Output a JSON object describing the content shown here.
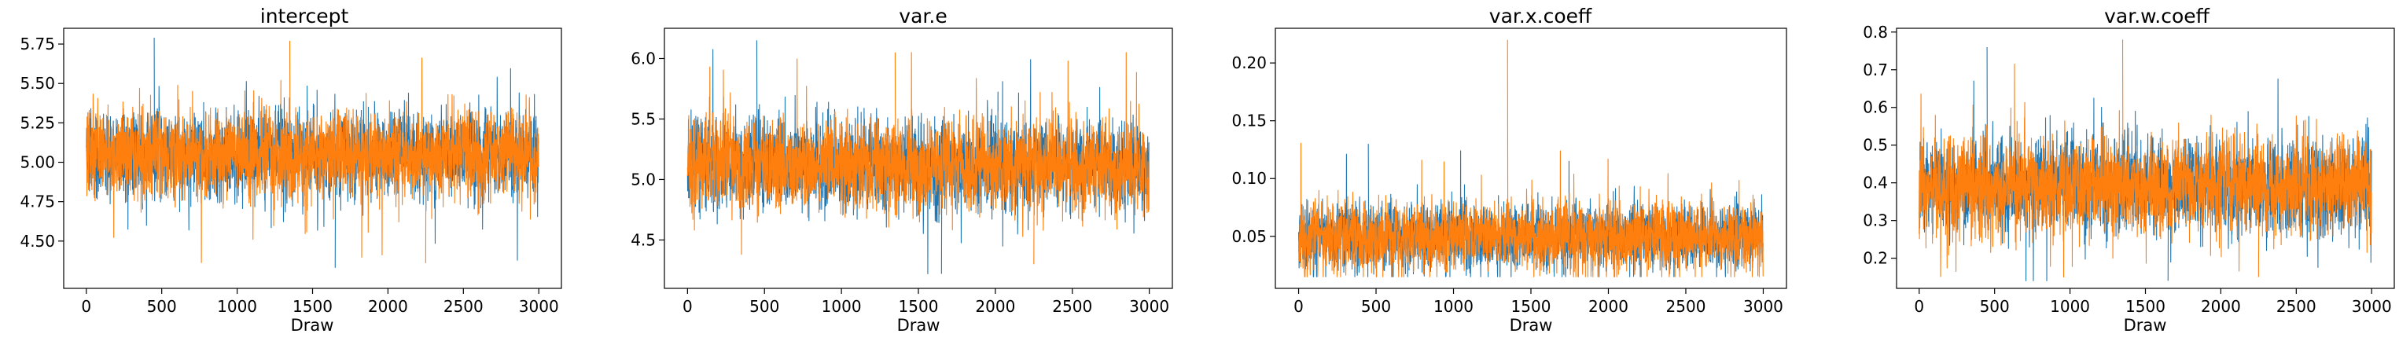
{
  "chart_data": [
    {
      "type": "line",
      "title": "intercept",
      "xlabel": "Draw",
      "ylabel": "",
      "xlim": [
        -150,
        3150
      ],
      "ylim": [
        4.2,
        5.85
      ],
      "xticks": [
        0,
        500,
        1000,
        1500,
        2000,
        2500,
        3000
      ],
      "xtick_labels": [
        "0",
        "500",
        "1000",
        "1500",
        "2000",
        "2500",
        "3000"
      ],
      "yticks": [
        4.5,
        4.75,
        5.0,
        5.25,
        5.5,
        5.75
      ],
      "ytick_labels": [
        "4.50",
        "4.75",
        "5.00",
        "5.25",
        "5.50",
        "5.75"
      ],
      "draws": 3000,
      "series": [
        {
          "color": "#1f77b4",
          "center": 5.05,
          "spread": 0.16,
          "min": 4.33,
          "max": 5.79
        },
        {
          "color": "#ff7f0e",
          "center": 5.05,
          "spread": 0.16,
          "min": 4.36,
          "max": 5.77
        }
      ]
    },
    {
      "type": "line",
      "title": "var.e",
      "xlabel": "Draw",
      "ylabel": "",
      "xlim": [
        -150,
        3150
      ],
      "ylim": [
        4.1,
        6.25
      ],
      "xticks": [
        0,
        500,
        1000,
        1500,
        2000,
        2500,
        3000
      ],
      "xtick_labels": [
        "0",
        "500",
        "1000",
        "1500",
        "2000",
        "2500",
        "3000"
      ],
      "yticks": [
        4.5,
        5.0,
        5.5,
        6.0
      ],
      "ytick_labels": [
        "4.5",
        "5.0",
        "5.5",
        "6.0"
      ],
      "draws": 3000,
      "series": [
        {
          "color": "#1f77b4",
          "center": 5.12,
          "spread": 0.22,
          "min": 4.22,
          "max": 6.15
        },
        {
          "color": "#ff7f0e",
          "center": 5.12,
          "spread": 0.22,
          "min": 4.3,
          "max": 6.05
        }
      ]
    },
    {
      "type": "line",
      "title": "var.x.coeff",
      "xlabel": "Draw",
      "ylabel": "",
      "xlim": [
        -150,
        3150
      ],
      "ylim": [
        0.005,
        0.23
      ],
      "xticks": [
        0,
        500,
        1000,
        1500,
        2000,
        2500,
        3000
      ],
      "xtick_labels": [
        "0",
        "500",
        "1000",
        "1500",
        "2000",
        "2500",
        "3000"
      ],
      "yticks": [
        0.05,
        0.1,
        0.15,
        0.2
      ],
      "ytick_labels": [
        "0.05",
        "0.10",
        "0.15",
        "0.20"
      ],
      "draws": 3000,
      "series": [
        {
          "color": "#1f77b4",
          "center": 0.05,
          "spread": 0.017,
          "min": 0.015,
          "max": 0.13
        },
        {
          "color": "#ff7f0e",
          "center": 0.05,
          "spread": 0.018,
          "min": 0.015,
          "max": 0.22
        }
      ]
    },
    {
      "type": "line",
      "title": "var.w.coeff",
      "xlabel": "Draw",
      "ylabel": "",
      "xlim": [
        -150,
        3150
      ],
      "ylim": [
        0.12,
        0.81
      ],
      "xticks": [
        0,
        500,
        1000,
        1500,
        2000,
        2500,
        3000
      ],
      "xtick_labels": [
        "0",
        "500",
        "1000",
        "1500",
        "2000",
        "2500",
        "3000"
      ],
      "yticks": [
        0.2,
        0.3,
        0.4,
        0.5,
        0.6,
        0.7,
        0.8
      ],
      "ytick_labels": [
        "0.2",
        "0.3",
        "0.4",
        "0.5",
        "0.6",
        "0.7",
        "0.8"
      ],
      "draws": 3000,
      "series": [
        {
          "color": "#1f77b4",
          "center": 0.39,
          "spread": 0.075,
          "min": 0.14,
          "max": 0.76
        },
        {
          "color": "#ff7f0e",
          "center": 0.39,
          "spread": 0.075,
          "min": 0.15,
          "max": 0.78
        }
      ]
    }
  ]
}
